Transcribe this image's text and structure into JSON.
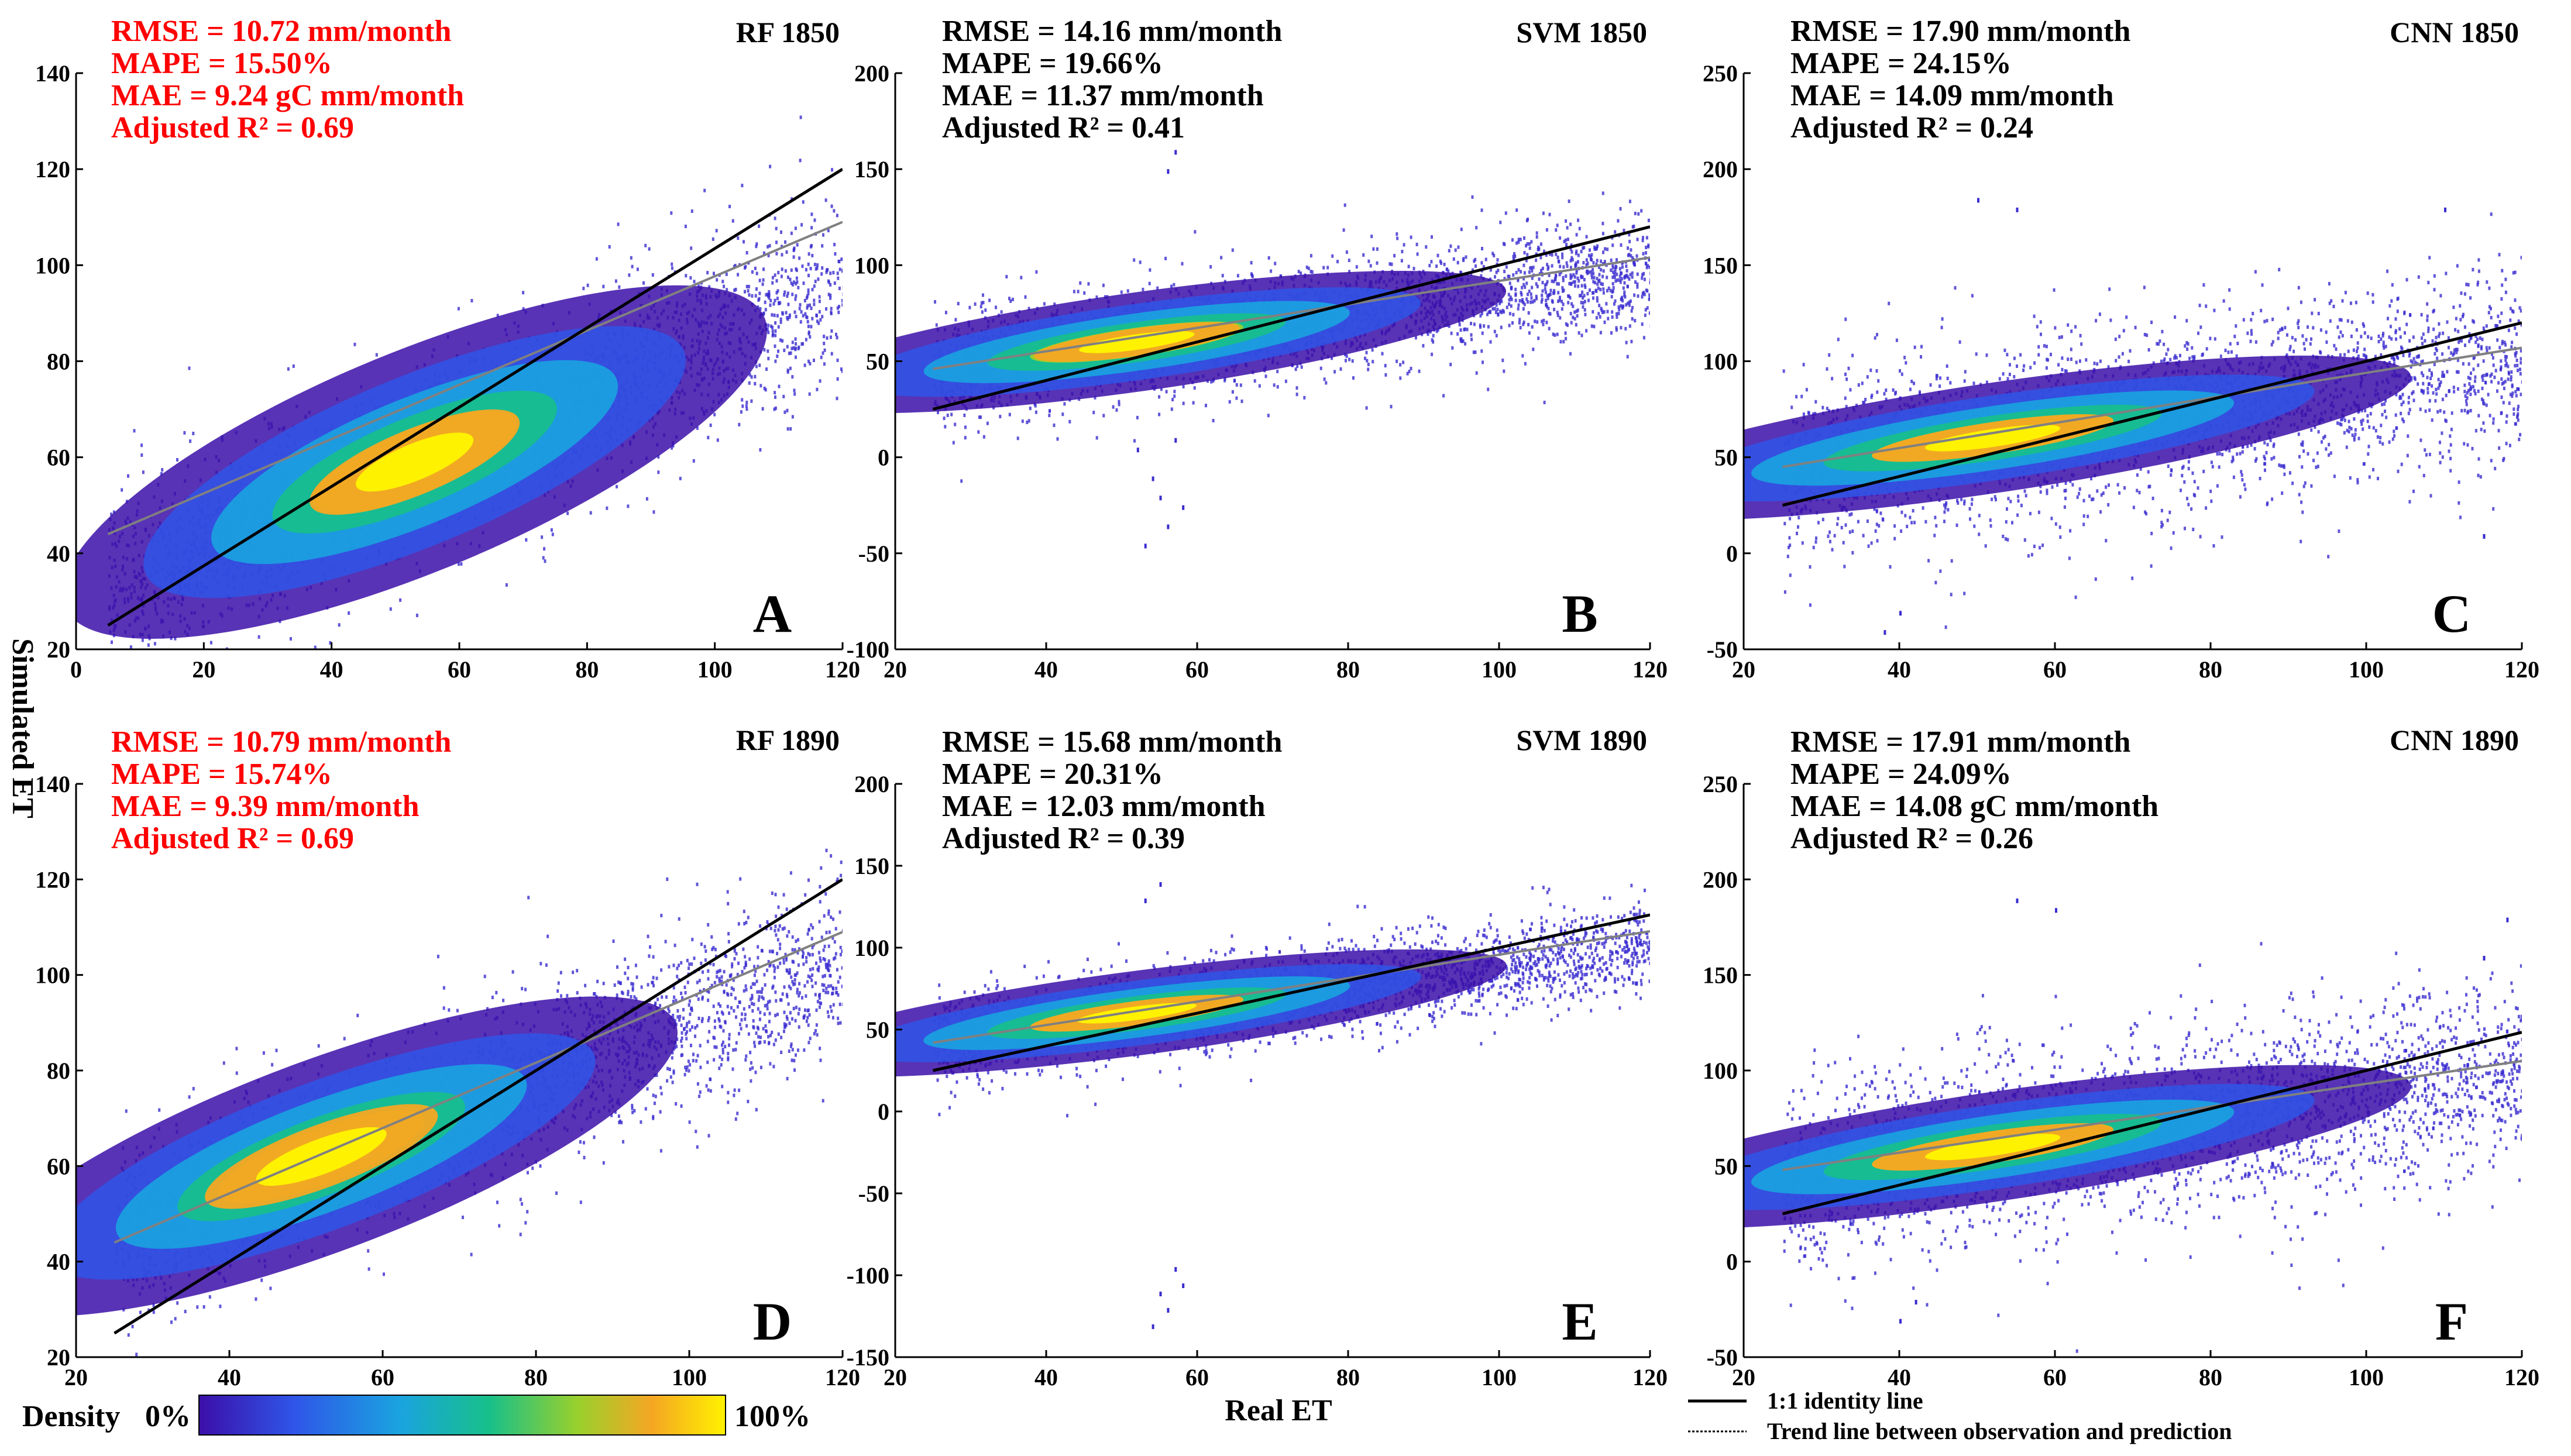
{
  "figure": {
    "ylabel": "Simulated ET",
    "xlabel": "Real ET",
    "legend": {
      "identity": "1:1 identity line",
      "trend": "Trend line between observation and prediction"
    },
    "colorbar": {
      "label": "Density",
      "min_label": "0%",
      "max_label": "100%"
    }
  },
  "colors": {
    "scatter_edge": "#3a2ccf",
    "density_scale": [
      "#3b0fa8",
      "#2f55e8",
      "#1aa3e0",
      "#17c08a",
      "#9ad02c",
      "#f5a623",
      "#fff200"
    ],
    "stats_highlight": "#ff0000",
    "stats_default": "#000000",
    "identity_line": "#000000",
    "trend_line": "#808080"
  },
  "chart_data": [
    {
      "id": "A",
      "type": "scatter",
      "title": "RF 1850",
      "letter": "A",
      "xlim": [
        0,
        120
      ],
      "ylim": [
        20,
        140
      ],
      "xticks": [
        "0",
        "20",
        "40",
        "60",
        "80",
        "100",
        "120"
      ],
      "yticks": [
        "20",
        "40",
        "60",
        "80",
        "100",
        "120",
        "140"
      ],
      "stats": [
        "RMSE = 10.72 mm/month",
        "MAPE = 15.50%",
        "MAE = 9.24 gC mm/month",
        "Adjusted R² = 0.69"
      ],
      "stats_highlight": true,
      "identity_line": [
        [
          5,
          25
        ],
        [
          120,
          120
        ]
      ],
      "trend_line": [
        [
          5,
          44
        ],
        [
          120,
          109
        ]
      ],
      "density": {
        "xr": [
          5,
          120
        ],
        "center": [
          53,
          59
        ],
        "spread": [
          12,
          8
        ],
        "slope": 0.55,
        "noise": 13,
        "core": 0.55,
        "xspread": [
          5,
          120
        ]
      },
      "outliers": []
    },
    {
      "id": "B",
      "type": "scatter",
      "title": "SVM 1850",
      "letter": "B",
      "xlim": [
        20,
        120
      ],
      "ylim": [
        -100,
        200
      ],
      "xticks": [
        "20",
        "40",
        "60",
        "80",
        "100",
        "120"
      ],
      "yticks": [
        "-100",
        "-50",
        "0",
        "50",
        "100",
        "150",
        "200"
      ],
      "stats": [
        "RMSE = 14.16 mm/month",
        "MAPE = 19.66%",
        "MAE = 11.37 mm/month",
        "Adjusted R² = 0.41"
      ],
      "stats_highlight": false,
      "identity_line": [
        [
          25,
          25
        ],
        [
          120,
          120
        ]
      ],
      "trend_line": [
        [
          25,
          46
        ],
        [
          120,
          104
        ]
      ],
      "density": {
        "xr": [
          25,
          120
        ],
        "center": [
          52,
          60
        ],
        "spread": [
          10,
          9
        ],
        "slope": 0.55,
        "noise": 20,
        "core": 0.45,
        "xspread": [
          25,
          120
        ]
      },
      "outliers": [
        [
          55,
          -20
        ],
        [
          56,
          -35
        ],
        [
          53,
          -45
        ],
        [
          57,
          10
        ],
        [
          54,
          -10
        ],
        [
          58,
          -25
        ],
        [
          52,
          5
        ],
        [
          56,
          150
        ],
        [
          57,
          160
        ]
      ]
    },
    {
      "id": "C",
      "type": "scatter",
      "title": "CNN 1850",
      "letter": "C",
      "xlim": [
        20,
        120
      ],
      "ylim": [
        -50,
        250
      ],
      "xticks": [
        "20",
        "40",
        "60",
        "80",
        "100",
        "120"
      ],
      "yticks": [
        "-50",
        "0",
        "50",
        "100",
        "150",
        "200",
        "250"
      ],
      "stats": [
        "RMSE = 17.90 mm/month",
        "MAPE = 24.15%",
        "MAE = 14.09 mm/month",
        "Adjusted R² = 0.24"
      ],
      "stats_highlight": false,
      "identity_line": [
        [
          25,
          25
        ],
        [
          120,
          120
        ]
      ],
      "trend_line": [
        [
          25,
          45
        ],
        [
          120,
          107
        ]
      ],
      "density": {
        "xr": [
          25,
          120
        ],
        "center": [
          52,
          60
        ],
        "spread": [
          11,
          10
        ],
        "slope": 0.6,
        "noise": 34,
        "core": 0.5,
        "xspread": [
          25,
          120
        ]
      },
      "outliers": [
        [
          40,
          -30
        ],
        [
          38,
          -40
        ],
        [
          50,
          185
        ],
        [
          55,
          180
        ],
        [
          110,
          180
        ],
        [
          115,
          10
        ]
      ]
    },
    {
      "id": "D",
      "type": "scatter",
      "title": "RF 1890",
      "letter": "D",
      "xlim": [
        20,
        120
      ],
      "ylim": [
        20,
        140
      ],
      "xticks": [
        "20",
        "40",
        "60",
        "80",
        "100",
        "120"
      ],
      "yticks": [
        "20",
        "40",
        "60",
        "80",
        "100",
        "120",
        "140"
      ],
      "stats": [
        "RMSE = 10.79 mm/month",
        "MAPE = 15.74%",
        "MAE = 9.39 mm/month",
        "Adjusted R² = 0.69"
      ],
      "stats_highlight": true,
      "identity_line": [
        [
          25,
          25
        ],
        [
          120,
          120
        ]
      ],
      "trend_line": [
        [
          25,
          44
        ],
        [
          120,
          109
        ]
      ],
      "density": {
        "xr": [
          25,
          120
        ],
        "center": [
          52,
          62
        ],
        "spread": [
          10,
          7
        ],
        "slope": 0.6,
        "noise": 12,
        "core": 0.7,
        "xspread": [
          25,
          120
        ]
      },
      "outliers": []
    },
    {
      "id": "E",
      "type": "scatter",
      "title": "SVM 1890",
      "letter": "E",
      "xlim": [
        20,
        120
      ],
      "ylim": [
        -150,
        200
      ],
      "xticks": [
        "20",
        "40",
        "60",
        "80",
        "100",
        "120"
      ],
      "yticks": [
        "-150",
        "-100",
        "-50",
        "0",
        "50",
        "100",
        "150",
        "200"
      ],
      "stats": [
        "RMSE = 15.68 mm/month",
        "MAPE = 20.31%",
        "MAE = 12.03 mm/month",
        "Adjusted R² = 0.39"
      ],
      "stats_highlight": false,
      "identity_line": [
        [
          25,
          25
        ],
        [
          120,
          120
        ]
      ],
      "trend_line": [
        [
          25,
          42
        ],
        [
          120,
          110
        ]
      ],
      "density": {
        "xr": [
          25,
          120
        ],
        "center": [
          52,
          60
        ],
        "spread": [
          10,
          9
        ],
        "slope": 0.6,
        "noise": 18,
        "core": 0.5,
        "xspread": [
          25,
          120
        ]
      },
      "outliers": [
        [
          55,
          -110
        ],
        [
          56,
          -120
        ],
        [
          57,
          -95
        ],
        [
          54,
          -130
        ],
        [
          58,
          -105
        ],
        [
          53,
          130
        ],
        [
          55,
          140
        ]
      ]
    },
    {
      "id": "F",
      "type": "scatter",
      "title": "CNN 1890",
      "letter": "F",
      "xlim": [
        20,
        120
      ],
      "ylim": [
        -50,
        250
      ],
      "xticks": [
        "20",
        "40",
        "60",
        "80",
        "100",
        "120"
      ],
      "yticks": [
        "-50",
        "0",
        "50",
        "100",
        "150",
        "200",
        "250"
      ],
      "stats": [
        "RMSE = 17.91 mm/month",
        "MAPE = 24.09%",
        "MAE = 14.08 gC mm/month",
        "Adjusted R² = 0.26"
      ],
      "stats_highlight": false,
      "identity_line": [
        [
          25,
          25
        ],
        [
          120,
          120
        ]
      ],
      "trend_line": [
        [
          25,
          48
        ],
        [
          120,
          105
        ]
      ],
      "density": {
        "xr": [
          25,
          120
        ],
        "center": [
          52,
          60
        ],
        "spread": [
          11,
          10
        ],
        "slope": 0.6,
        "noise": 34,
        "core": 0.5,
        "xspread": [
          25,
          120
        ]
      },
      "outliers": [
        [
          40,
          -30
        ],
        [
          42,
          -20
        ],
        [
          118,
          180
        ],
        [
          115,
          160
        ],
        [
          55,
          190
        ],
        [
          60,
          185
        ]
      ]
    }
  ]
}
